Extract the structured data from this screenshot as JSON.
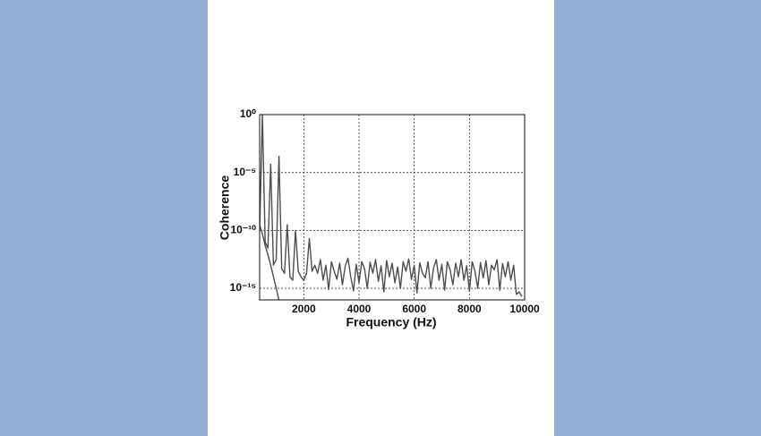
{
  "chart_data": {
    "type": "line",
    "xlabel": "Frequency (Hz)",
    "ylabel": "Coherence",
    "x": [
      400,
      500,
      600,
      700,
      800,
      900,
      1000,
      1100,
      1200,
      1300,
      1400,
      1500,
      1600,
      1700,
      1800,
      1900,
      2000,
      2100,
      2200,
      2300,
      2400,
      2500,
      2600,
      2700,
      2800,
      2900,
      3000,
      3100,
      3200,
      3300,
      3400,
      3500,
      3600,
      3700,
      3800,
      3900,
      4000,
      4100,
      4200,
      4300,
      4400,
      4500,
      4600,
      4700,
      4800,
      4900,
      5000,
      5100,
      5200,
      5300,
      5400,
      5500,
      5600,
      5700,
      5800,
      5900,
      6000,
      6100,
      6200,
      6300,
      6400,
      6500,
      6600,
      6700,
      6800,
      6900,
      7000,
      7100,
      7200,
      7300,
      7400,
      7500,
      7600,
      7700,
      7800,
      7900,
      8000,
      8100,
      8200,
      8300,
      8400,
      8500,
      8600,
      8700,
      8800,
      8900,
      9000,
      9100,
      9200,
      9300,
      9400,
      9500,
      9600,
      9700,
      9800,
      9900
    ],
    "series": [
      {
        "color": "#4d4d4d",
        "values": [
          1e-10,
          1,
          1e-11,
          3e-12,
          5e-05,
          1e-13,
          3e-13,
          0.00025,
          5e-14,
          2e-14,
          3e-10,
          1e-14,
          5e-15,
          1e-10,
          3e-14,
          1e-14,
          5e-15,
          2e-14,
          2e-11,
          3e-14,
          1e-13,
          2e-14,
          3e-13,
          5e-15,
          1e-13,
          8e-16,
          2e-13,
          3e-14,
          6e-15,
          1.5e-13,
          2e-15,
          8e-14,
          4e-13,
          1e-14,
          6e-16,
          1.2e-13,
          3e-15,
          2e-13,
          5e-14,
          1e-15,
          1.8e-13,
          2e-14,
          3e-13,
          4e-15,
          9e-14,
          5e-16,
          2.5e-13,
          1e-14,
          1.5e-13,
          3e-15,
          7e-14,
          1e-15,
          2e-13,
          3e-14,
          3.5e-13,
          6e-15,
          1e-13,
          4e-16,
          1.6e-13,
          2e-14,
          8e-15,
          2e-13,
          1e-15,
          6e-14,
          3e-13,
          5e-15,
          1.2e-13,
          7e-16,
          2e-13,
          4e-14,
          2e-15,
          1.5e-13,
          1e-14,
          3e-13,
          5e-15,
          9e-14,
          6e-16,
          2e-13,
          3e-14,
          1e-15,
          1.7e-13,
          8e-15,
          2.5e-13,
          2e-15,
          1e-13,
          4e-14,
          3e-13,
          7e-16,
          1.4e-13,
          1e-14,
          2e-13,
          5e-15,
          1e-13,
          3e-16,
          5e-16,
          2e-16
        ]
      },
      {
        "color": "#4d4d4d",
        "values": [
          3e-10,
          5e-11,
          5e-12,
          8e-13,
          1e-13,
          1e-14,
          1e-15,
          1e-16,
          null,
          null,
          null,
          null,
          null,
          null,
          null,
          null,
          null,
          null,
          null,
          null,
          null,
          null,
          null,
          null,
          null,
          null,
          null,
          null,
          null,
          null,
          null,
          null,
          null,
          null,
          null,
          null,
          null,
          null,
          null,
          null,
          null,
          null,
          null,
          null,
          null,
          null,
          null,
          null,
          null,
          null,
          null,
          null,
          null,
          null,
          null,
          null,
          null,
          null,
          null,
          null,
          null,
          null,
          null,
          null,
          null,
          null,
          null,
          null,
          null,
          null,
          null,
          null,
          null,
          null,
          null,
          null,
          null,
          null,
          null,
          null,
          null,
          null,
          null,
          null,
          null,
          null,
          null,
          null,
          null,
          null,
          null,
          null,
          null,
          null,
          null,
          null
        ]
      }
    ],
    "xlim": [
      400,
      10000
    ],
    "xticks": [
      2000,
      4000,
      6000,
      8000,
      10000
    ],
    "ylim": [
      1e-16,
      1
    ],
    "ylog": true,
    "yticks": [
      {
        "value": 1,
        "label": "10⁰"
      },
      {
        "value": 1e-05,
        "label": "10⁻⁵"
      },
      {
        "value": 1e-10,
        "label": "10⁻¹⁰"
      },
      {
        "value": 1e-15,
        "label": "10⁻¹⁵"
      }
    ],
    "grid": true
  }
}
